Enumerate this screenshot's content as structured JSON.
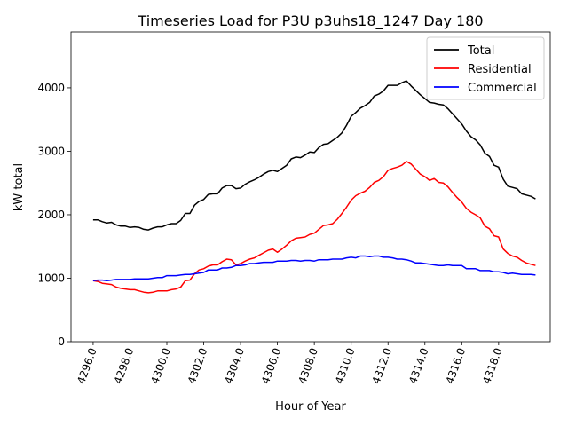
{
  "chart_data": {
    "type": "line",
    "title": "Timeseries Load for P3U p3uhs18_1247  Day 180",
    "xlabel": "Hour of Year",
    "ylabel": "kW total",
    "xlim": [
      4294.8,
      4320.8
    ],
    "ylim": [
      0,
      4880
    ],
    "x_ticks": [
      4296,
      4298,
      4300,
      4302,
      4304,
      4306,
      4308,
      4310,
      4312,
      4314,
      4316,
      4318
    ],
    "x_tick_labels": [
      "4296.0",
      "4298.0",
      "4300.0",
      "4302.0",
      "4304.0",
      "4306.0",
      "4308.0",
      "4310.0",
      "4312.0",
      "4314.0",
      "4316.0",
      "4318.0"
    ],
    "y_ticks": [
      0,
      1000,
      2000,
      3000,
      4000
    ],
    "y_tick_labels": [
      "0",
      "1000",
      "2000",
      "3000",
      "4000"
    ],
    "x_start": 4296,
    "x_step": 0.25,
    "legend_position": "top-right",
    "grid": false,
    "series": [
      {
        "name": "Total",
        "color": "#000000",
        "values": [
          1920,
          1920,
          1890,
          1870,
          1880,
          1840,
          1820,
          1820,
          1800,
          1810,
          1800,
          1770,
          1760,
          1790,
          1810,
          1810,
          1840,
          1860,
          1860,
          1910,
          2020,
          2020,
          2150,
          2210,
          2240,
          2320,
          2330,
          2330,
          2420,
          2460,
          2460,
          2410,
          2420,
          2480,
          2520,
          2550,
          2590,
          2640,
          2680,
          2700,
          2680,
          2730,
          2780,
          2880,
          2910,
          2900,
          2940,
          2990,
          2980,
          3060,
          3110,
          3120,
          3170,
          3220,
          3290,
          3410,
          3550,
          3610,
          3680,
          3720,
          3770,
          3870,
          3900,
          3950,
          4040,
          4040,
          4040,
          4080,
          4110,
          4030,
          3960,
          3890,
          3830,
          3770,
          3760,
          3740,
          3730,
          3670,
          3590,
          3510,
          3430,
          3320,
          3230,
          3180,
          3100,
          2970,
          2920,
          2780,
          2750,
          2560,
          2450,
          2430,
          2410,
          2330,
          2310,
          2290,
          2250
        ]
      },
      {
        "name": "Residential",
        "color": "#ff0000",
        "values": [
          960,
          950,
          920,
          910,
          900,
          860,
          840,
          830,
          820,
          820,
          800,
          780,
          770,
          780,
          800,
          800,
          800,
          820,
          830,
          860,
          960,
          970,
          1070,
          1130,
          1150,
          1190,
          1210,
          1210,
          1260,
          1300,
          1290,
          1210,
          1230,
          1270,
          1300,
          1320,
          1360,
          1400,
          1440,
          1460,
          1410,
          1460,
          1520,
          1590,
          1630,
          1640,
          1650,
          1690,
          1710,
          1770,
          1830,
          1840,
          1860,
          1930,
          2020,
          2120,
          2230,
          2300,
          2340,
          2370,
          2430,
          2510,
          2540,
          2600,
          2700,
          2730,
          2750,
          2780,
          2840,
          2800,
          2720,
          2640,
          2600,
          2540,
          2570,
          2510,
          2500,
          2440,
          2350,
          2270,
          2200,
          2100,
          2040,
          2000,
          1950,
          1820,
          1780,
          1670,
          1650,
          1460,
          1390,
          1350,
          1330,
          1280,
          1240,
          1220,
          1200
        ]
      },
      {
        "name": "Commercial",
        "color": "#0000ff",
        "values": [
          960,
          970,
          970,
          960,
          970,
          980,
          980,
          980,
          980,
          990,
          990,
          990,
          990,
          1000,
          1010,
          1010,
          1040,
          1040,
          1040,
          1050,
          1060,
          1060,
          1070,
          1080,
          1090,
          1130,
          1130,
          1130,
          1160,
          1160,
          1170,
          1200,
          1200,
          1210,
          1230,
          1230,
          1240,
          1250,
          1250,
          1250,
          1270,
          1270,
          1270,
          1280,
          1280,
          1270,
          1280,
          1280,
          1270,
          1290,
          1290,
          1290,
          1300,
          1300,
          1300,
          1320,
          1330,
          1320,
          1350,
          1350,
          1340,
          1350,
          1350,
          1330,
          1330,
          1320,
          1300,
          1300,
          1290,
          1270,
          1240,
          1240,
          1230,
          1220,
          1210,
          1200,
          1200,
          1210,
          1200,
          1200,
          1200,
          1150,
          1150,
          1150,
          1120,
          1120,
          1120,
          1100,
          1100,
          1090,
          1070,
          1080,
          1070,
          1060,
          1060,
          1060,
          1050
        ]
      }
    ]
  }
}
